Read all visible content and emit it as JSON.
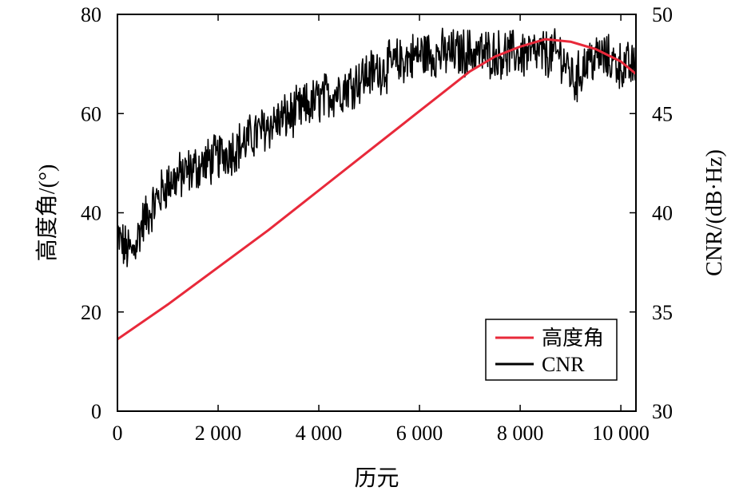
{
  "chart_data": {
    "type": "line",
    "xlabel": "历元",
    "ylabel_left": "高度角/(°)",
    "ylabel_right": "CNR/(dB·Hz)",
    "xlim": [
      0,
      10300
    ],
    "ylim_left": [
      0,
      80
    ],
    "ylim_right": [
      30,
      50
    ],
    "x_ticks": [
      0,
      2000,
      4000,
      6000,
      8000,
      10000
    ],
    "x_tick_labels": [
      "0",
      "2 000",
      "4 000",
      "6 000",
      "8 000",
      "10 000"
    ],
    "y_left_ticks": [
      0,
      20,
      40,
      60,
      80
    ],
    "y_left_tick_labels": [
      "0",
      "20",
      "40",
      "60",
      "80"
    ],
    "y_right_ticks": [
      30,
      35,
      40,
      45,
      50
    ],
    "y_right_tick_labels": [
      "30",
      "35",
      "40",
      "45",
      "50"
    ],
    "grid": false,
    "legend_position": "bottom-right",
    "series": [
      {
        "name": "高度角",
        "axis": "left",
        "color": "#e8293a",
        "x": [
          0,
          1000,
          2000,
          3000,
          4000,
          5000,
          6000,
          6500,
          7000,
          7500,
          8000,
          8500,
          9000,
          9500,
          10000,
          10300
        ],
        "y": [
          14.5,
          21.5,
          29,
          36.5,
          44.5,
          52.5,
          60.5,
          64.5,
          68.5,
          71.5,
          73.5,
          75,
          74.5,
          73,
          70.5,
          68
        ]
      },
      {
        "name": "CNR",
        "axis": "right",
        "color": "#000000",
        "noise_amplitude": 1.1,
        "x": [
          0,
          150,
          300,
          500,
          800,
          1000,
          1500,
          2000,
          2500,
          3000,
          3500,
          4000,
          4500,
          5000,
          5500,
          6000,
          6500,
          7000,
          7500,
          8000,
          8500,
          8800,
          9000,
          9100,
          9300,
          9600,
          10000,
          10300
        ],
        "y": [
          38.8,
          38.2,
          38.0,
          39.5,
          40.7,
          41.5,
          42.2,
          42.8,
          43.5,
          44.4,
          45.0,
          45.7,
          46.3,
          47.0,
          47.5,
          48.0,
          48.0,
          48.1,
          48.0,
          48.0,
          48.0,
          48.0,
          47.0,
          46.6,
          47.6,
          47.9,
          47.4,
          47.3
        ]
      }
    ]
  }
}
